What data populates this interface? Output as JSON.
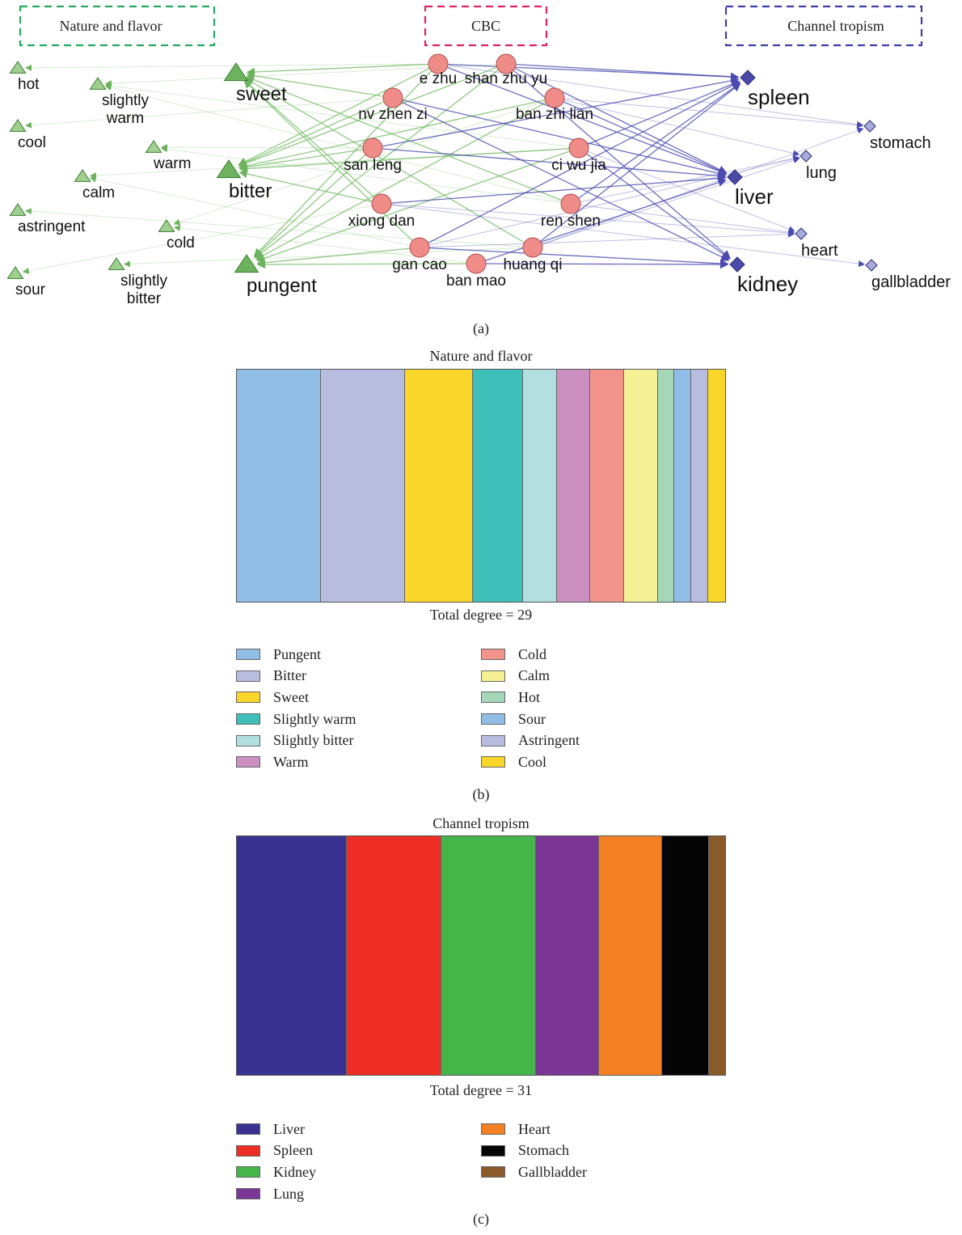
{
  "network": {
    "groups": {
      "nature": "Nature and flavor",
      "cbc": "CBC",
      "channel": "Channel tropism"
    },
    "flavor_nodes": [
      {
        "id": "hot",
        "label": "hot"
      },
      {
        "id": "slightly_warm",
        "label": "slightly\nwarm"
      },
      {
        "id": "cool",
        "label": "cool"
      },
      {
        "id": "warm",
        "label": "warm"
      },
      {
        "id": "calm",
        "label": "calm"
      },
      {
        "id": "astringent",
        "label": "astringent"
      },
      {
        "id": "cold",
        "label": "cold"
      },
      {
        "id": "sour",
        "label": "sour"
      },
      {
        "id": "slightly_bitter",
        "label": "slightly\nbitter"
      },
      {
        "id": "sweet",
        "label": "sweet"
      },
      {
        "id": "bitter",
        "label": "bitter"
      },
      {
        "id": "pungent",
        "label": "pungent"
      }
    ],
    "herb_nodes": [
      {
        "id": "e_zhu",
        "label": "e zhu"
      },
      {
        "id": "shan_zhu_yu",
        "label": "shan zhu yu"
      },
      {
        "id": "nv_zhen_zi",
        "label": "nv zhen zi"
      },
      {
        "id": "ban_zhi_lian",
        "label": "ban zhi lian"
      },
      {
        "id": "san_leng",
        "label": "san leng"
      },
      {
        "id": "ci_wu_jia",
        "label": "ci wu jia"
      },
      {
        "id": "xiong_dan",
        "label": "xiong dan"
      },
      {
        "id": "ren_shen",
        "label": "ren shen"
      },
      {
        "id": "gan_cao",
        "label": "gan cao"
      },
      {
        "id": "huang_qi",
        "label": "huang qi"
      },
      {
        "id": "ban_mao",
        "label": "ban mao"
      }
    ],
    "channel_nodes": [
      {
        "id": "spleen",
        "label": "spleen"
      },
      {
        "id": "liver",
        "label": "liver"
      },
      {
        "id": "kidney",
        "label": "kidney"
      },
      {
        "id": "stomach",
        "label": "stomach"
      },
      {
        "id": "lung",
        "label": "lung"
      },
      {
        "id": "heart",
        "label": "heart"
      },
      {
        "id": "gallbladder",
        "label": "gallbladder"
      }
    ],
    "colors": {
      "flavor": "#6db35f",
      "herb": "#f08c88",
      "channel": "#4a4aa8",
      "edge_flavor": "#7cc06e",
      "edge_channel": "#4a4ab0"
    }
  },
  "caption_a": "(a)",
  "chart_b": {
    "title": "Nature and flavor",
    "total": "Total degree = 29",
    "caption": "(b)",
    "segments": [
      {
        "name": "Pungent",
        "value": 5,
        "color": "#8fbde6"
      },
      {
        "name": "Bitter",
        "value": 5,
        "color": "#b8bde0"
      },
      {
        "name": "Sweet",
        "value": 4,
        "color": "#fad52a"
      },
      {
        "name": "Slightly warm",
        "value": 3,
        "color": "#3fbfba"
      },
      {
        "name": "Slightly bitter",
        "value": 2,
        "color": "#b2dfe0"
      },
      {
        "name": "Warm",
        "value": 2,
        "color": "#cb8fc0"
      },
      {
        "name": "Cold",
        "value": 2,
        "color": "#f2948c"
      },
      {
        "name": "Calm",
        "value": 2,
        "color": "#f5f194"
      },
      {
        "name": "Hot",
        "value": 1,
        "color": "#a4d8b8"
      },
      {
        "name": "Sour",
        "value": 1,
        "color": "#8fbde6"
      },
      {
        "name": "Astringent",
        "value": 1,
        "color": "#b8bde0"
      },
      {
        "name": "Cool",
        "value": 1,
        "color": "#fad52a"
      }
    ]
  },
  "chart_c": {
    "title": "Channel tropism",
    "total": "Total degree = 31",
    "caption": "(c)",
    "segments": [
      {
        "name": "Liver",
        "value": 7,
        "color": "#3a3291"
      },
      {
        "name": "Spleen",
        "value": 6,
        "color": "#ee2e24"
      },
      {
        "name": "Kidney",
        "value": 6,
        "color": "#45b549"
      },
      {
        "name": "Lung",
        "value": 4,
        "color": "#7a3595"
      },
      {
        "name": "Heart",
        "value": 4,
        "color": "#f58024"
      },
      {
        "name": "Stomach",
        "value": 3,
        "color": "#050505"
      },
      {
        "name": "Gallbladder",
        "value": 1,
        "color": "#8b5a2b"
      }
    ]
  }
}
